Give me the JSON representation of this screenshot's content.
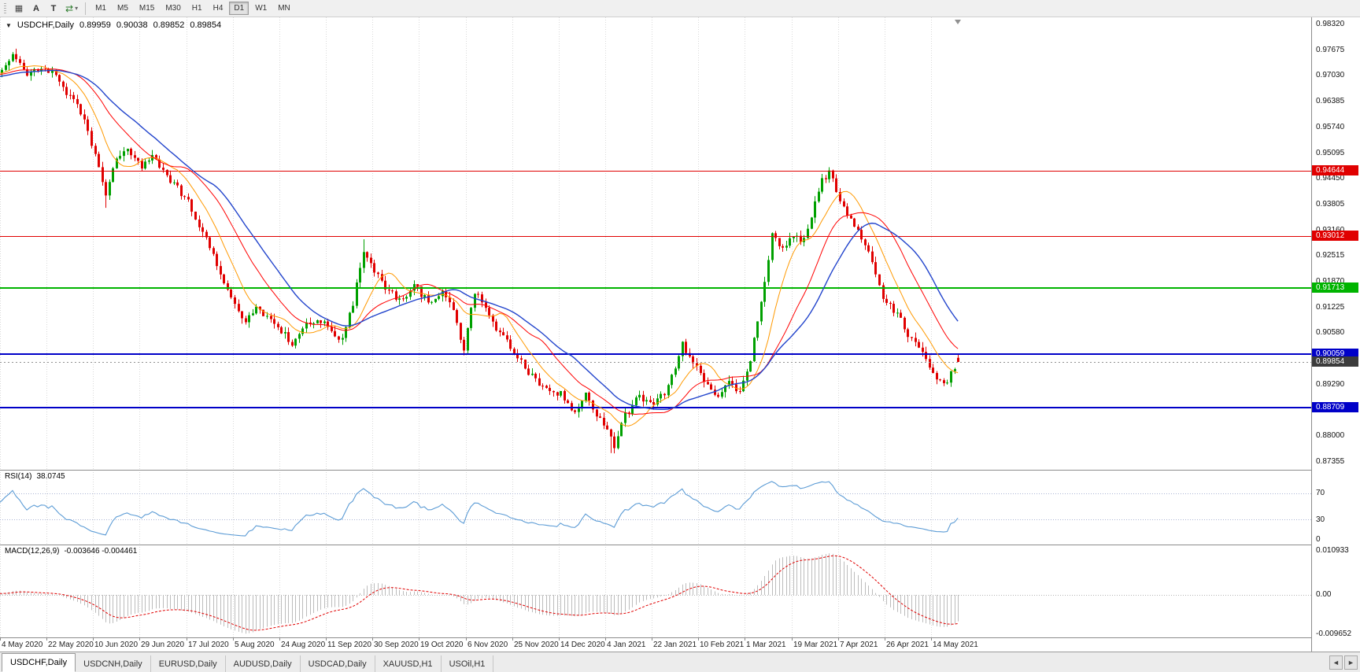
{
  "window": {
    "background": "#f0f0f0"
  },
  "toolbar": {
    "caret": "▾",
    "icons": [
      {
        "name": "grid-tool",
        "glyph": "▦"
      },
      {
        "name": "annotation-tool",
        "glyph": "A"
      },
      {
        "name": "text-tool",
        "glyph": "T"
      },
      {
        "name": "cycle-symbol-tool",
        "glyph": "⇄"
      }
    ],
    "timeframes": [
      {
        "label": "M1",
        "active": false
      },
      {
        "label": "M5",
        "active": false
      },
      {
        "label": "M15",
        "active": false
      },
      {
        "label": "M30",
        "active": false
      },
      {
        "label": "H1",
        "active": false
      },
      {
        "label": "H4",
        "active": false
      },
      {
        "label": "D1",
        "active": true
      },
      {
        "label": "W1",
        "active": false
      },
      {
        "label": "MN",
        "active": false
      }
    ]
  },
  "chart_header": {
    "collapse_icon": "▼",
    "symbol": "USDCHF,Daily",
    "open": "0.89959",
    "high": "0.90038",
    "low": "0.89852",
    "close": "0.89854"
  },
  "rsi_header": {
    "label": "RSI(14)",
    "value": "38.0745"
  },
  "macd_header": {
    "label": "MACD(12,26,9)",
    "value": "-0.003646 -0.004461"
  },
  "tabs": {
    "scroll_left": "◄",
    "scroll_right": "►",
    "items": [
      {
        "label": "USDCHF,Daily",
        "active": true
      },
      {
        "label": "USDCNH,Daily",
        "active": false
      },
      {
        "label": "EURUSD,Daily",
        "active": false
      },
      {
        "label": "AUDUSD,Daily",
        "active": false
      },
      {
        "label": "USDCAD,Daily",
        "active": false
      },
      {
        "label": "XAUUSD,H1",
        "active": false
      },
      {
        "label": "USOil,H1",
        "active": false
      }
    ]
  },
  "chart_data": {
    "type": "candlestick",
    "symbol": "USDCHF",
    "timeframe": "Daily",
    "last_candle": {
      "open": 0.89959,
      "high": 0.90038,
      "low": 0.89852,
      "close": 0.89854
    },
    "visible_bars": 268,
    "pre_bars": 60,
    "bars_per_date_label": 13,
    "grid_on": true,
    "grid_color": "#d9d9d9",
    "price_axis": {
      "scale_top": 0.985,
      "scale_bottom": 0.8715,
      "tick_step": 0.00645,
      "labels": [
        "0.98320",
        "0.97675",
        "0.97030",
        "0.96385",
        "0.95740",
        "0.95095",
        "0.94450",
        "0.93805",
        "0.93160",
        "0.92515",
        "0.91870",
        "0.91225",
        "0.90580",
        "0.89935",
        "0.89290",
        "0.88645",
        "0.88000",
        "0.87355"
      ]
    },
    "date_labels": [
      "4 May 2020",
      "22 May 2020",
      "10 Jun 2020",
      "29 Jun 2020",
      "17 Jul 2020",
      "5 Aug 2020",
      "24 Aug 2020",
      "11 Sep 2020",
      "30 Sep 2020",
      "19 Oct 2020",
      "6 Nov 2020",
      "25 Nov 2020",
      "14 Dec 2020",
      "4 Jan 2021",
      "22 Jan 2021",
      "10 Feb 2021",
      "1 Mar 2021",
      "19 Mar 2021",
      "7 Apr 2021",
      "26 Apr 2021",
      "14 May 2021"
    ],
    "price_path_anchors": [
      [
        -60,
        0.969
      ],
      [
        -45,
        0.971
      ],
      [
        -30,
        0.9685
      ],
      [
        -15,
        0.9705
      ],
      [
        0,
        0.9715
      ],
      [
        3,
        0.9755
      ],
      [
        7,
        0.9705
      ],
      [
        11,
        0.9725
      ],
      [
        14,
        0.9712
      ],
      [
        18,
        0.966
      ],
      [
        22,
        0.9615
      ],
      [
        26,
        0.95
      ],
      [
        29,
        0.941
      ],
      [
        32,
        0.949
      ],
      [
        35,
        0.9525
      ],
      [
        39,
        0.9475
      ],
      [
        42,
        0.9505
      ],
      [
        45,
        0.946
      ],
      [
        48,
        0.943
      ],
      [
        52,
        0.939
      ],
      [
        55,
        0.933
      ],
      [
        58,
        0.927
      ],
      [
        61,
        0.921
      ],
      [
        65,
        0.913
      ],
      [
        68,
        0.9085
      ],
      [
        71,
        0.913
      ],
      [
        74,
        0.9095
      ],
      [
        78,
        0.906
      ],
      [
        81,
        0.9035
      ],
      [
        84,
        0.9075
      ],
      [
        87,
        0.909
      ],
      [
        91,
        0.9075
      ],
      [
        95,
        0.904
      ],
      [
        98,
        0.913
      ],
      [
        101,
        0.927
      ],
      [
        104,
        0.9215
      ],
      [
        108,
        0.916
      ],
      [
        112,
        0.914
      ],
      [
        115,
        0.9185
      ],
      [
        117,
        0.9155
      ],
      [
        120,
        0.9135
      ],
      [
        123,
        0.916
      ],
      [
        126,
        0.911
      ],
      [
        129,
        0.902
      ],
      [
        132,
        0.9165
      ],
      [
        135,
        0.912
      ],
      [
        139,
        0.9055
      ],
      [
        143,
        0.9015
      ],
      [
        147,
        0.896
      ],
      [
        151,
        0.8925
      ],
      [
        156,
        0.8905
      ],
      [
        160,
        0.8855
      ],
      [
        163,
        0.89
      ],
      [
        166,
        0.8855
      ],
      [
        169,
        0.8815
      ],
      [
        171,
        0.8775
      ],
      [
        174,
        0.885
      ],
      [
        178,
        0.89
      ],
      [
        182,
        0.888
      ],
      [
        186,
        0.892
      ],
      [
        190,
        0.903
      ],
      [
        193,
        0.899
      ],
      [
        196,
        0.893
      ],
      [
        200,
        0.89
      ],
      [
        203,
        0.8935
      ],
      [
        206,
        0.8905
      ],
      [
        209,
        0.899
      ],
      [
        212,
        0.914
      ],
      [
        215,
        0.93
      ],
      [
        218,
        0.927
      ],
      [
        221,
        0.93
      ],
      [
        224,
        0.929
      ],
      [
        227,
        0.938
      ],
      [
        229,
        0.944
      ],
      [
        231,
        0.9465
      ],
      [
        234,
        0.939
      ],
      [
        238,
        0.933
      ],
      [
        242,
        0.927
      ],
      [
        246,
        0.914
      ],
      [
        250,
        0.9105
      ],
      [
        254,
        0.904
      ],
      [
        258,
        0.899
      ],
      [
        261,
        0.894
      ],
      [
        263,
        0.8925
      ],
      [
        265,
        0.896
      ],
      [
        267,
        0.8985
      ]
    ],
    "spike_overrides": [
      {
        "bar": 29,
        "low": 0.9372
      },
      {
        "bar": 101,
        "high": 0.9293
      },
      {
        "bar": 170,
        "low": 0.8757
      },
      {
        "bar": 231,
        "high": 0.9471
      }
    ],
    "horizontal_levels": [
      {
        "value": 0.94644,
        "label": "0.94644",
        "color": "#e00000",
        "width": 1
      },
      {
        "value": 0.93012,
        "label": "0.93012",
        "color": "#e00000",
        "width": 1
      },
      {
        "value": 0.91713,
        "label": "0.91713",
        "color": "#00b400",
        "width": 2
      },
      {
        "value": 0.90059,
        "label": "0.90059",
        "color": "#0000c8",
        "width": 2
      },
      {
        "value": 0.88709,
        "label": "0.88709",
        "color": "#0000c8",
        "width": 2
      }
    ],
    "current_price": {
      "value": 0.89854,
      "label": "0.89854",
      "line_color": "#909090",
      "badge_color": "#3c3c3c"
    },
    "moving_averages": [
      {
        "period": 10,
        "color": "#ff9900",
        "width": 1
      },
      {
        "period": 21,
        "color": "#ff0000",
        "width": 1
      },
      {
        "period": 30,
        "color": "#2244cc",
        "width": 1.4
      }
    ],
    "candle_colors": {
      "up": "#00a000",
      "down": "#e00000"
    },
    "rsi": {
      "period": 14,
      "current": "38.0745",
      "levels": [
        70,
        30,
        0
      ],
      "level_line_color": "#aab4d4",
      "line_color": "#5b9bd5",
      "scale": [
        0,
        100
      ]
    },
    "macd": {
      "fast": 12,
      "slow": 26,
      "signal": 9,
      "values": [
        "-0.003646",
        "-0.004461"
      ],
      "axis_labels": [
        {
          "value": 0.010933,
          "label": "0.010933"
        },
        {
          "value": 0,
          "label": "0.00"
        },
        {
          "value": -0.009652,
          "label": "-0.009652"
        }
      ],
      "scale": [
        -0.0105,
        0.0125
      ],
      "histogram_color": "#bcbcbc",
      "signal_color": "#e00000"
    }
  }
}
